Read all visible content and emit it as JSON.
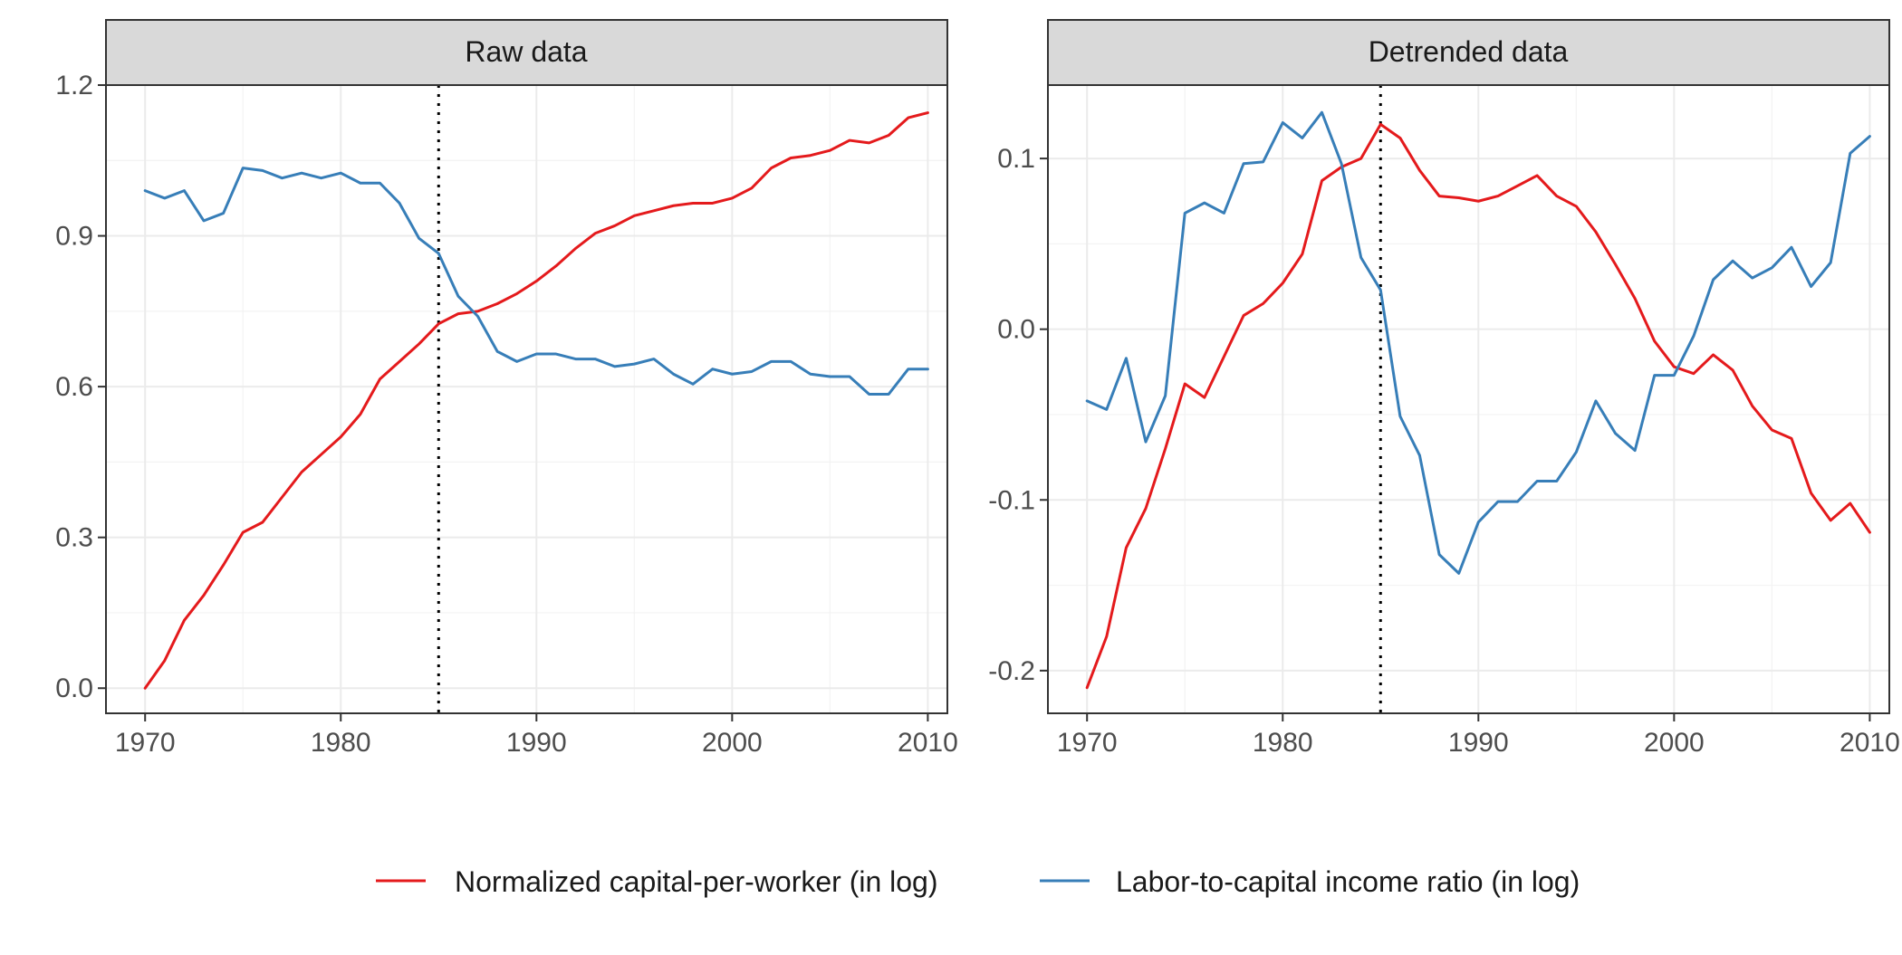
{
  "chart_data": [
    {
      "type": "line",
      "panel_title": "Raw data",
      "x_ticks": [
        1970,
        1980,
        1990,
        2000,
        2010
      ],
      "x_tick_labels": [
        "1970",
        "1980",
        "1990",
        "2000",
        "2010"
      ],
      "y_ticks": [
        0.0,
        0.3,
        0.6,
        0.9,
        1.2
      ],
      "y_tick_labels": [
        "0.0",
        "0.3",
        "0.6",
        "0.9",
        "1.2"
      ],
      "xlim": [
        1968,
        2011
      ],
      "ylim": [
        -0.05,
        1.2
      ],
      "reference_line_x": 1985,
      "grid": true,
      "x": [
        1970,
        1971,
        1972,
        1973,
        1974,
        1975,
        1976,
        1977,
        1978,
        1979,
        1980,
        1981,
        1982,
        1983,
        1984,
        1985,
        1986,
        1987,
        1988,
        1989,
        1990,
        1991,
        1992,
        1993,
        1994,
        1995,
        1996,
        1997,
        1998,
        1999,
        2000,
        2001,
        2002,
        2003,
        2004,
        2005,
        2006,
        2007,
        2008,
        2009,
        2010
      ],
      "series": [
        {
          "name": "Normalized capital-per-worker (in log)",
          "color": "#e41a1c",
          "values": [
            0.0,
            0.055,
            0.135,
            0.185,
            0.245,
            0.31,
            0.33,
            0.38,
            0.43,
            0.465,
            0.5,
            0.545,
            0.615,
            0.65,
            0.685,
            0.725,
            0.745,
            0.75,
            0.765,
            0.785,
            0.81,
            0.84,
            0.875,
            0.905,
            0.92,
            0.94,
            0.95,
            0.96,
            0.965,
            0.965,
            0.975,
            0.995,
            1.035,
            1.055,
            1.06,
            1.07,
            1.09,
            1.085,
            1.1,
            1.135,
            1.145
          ]
        },
        {
          "name": "Labor-to-capital income ratio (in log)",
          "color": "#377eb8",
          "values": [
            0.99,
            0.975,
            0.99,
            0.93,
            0.945,
            1.035,
            1.03,
            1.015,
            1.025,
            1.015,
            1.025,
            1.005,
            1.005,
            0.965,
            0.895,
            0.865,
            0.78,
            0.74,
            0.67,
            0.65,
            0.665,
            0.665,
            0.655,
            0.655,
            0.64,
            0.645,
            0.655,
            0.625,
            0.605,
            0.635,
            0.625,
            0.63,
            0.65,
            0.65,
            0.625,
            0.62,
            0.62,
            0.585,
            0.585,
            0.635,
            0.635
          ]
        }
      ]
    },
    {
      "type": "line",
      "panel_title": "Detrended data",
      "x_ticks": [
        1970,
        1980,
        1990,
        2000,
        2010
      ],
      "x_tick_labels": [
        "1970",
        "1980",
        "1990",
        "2000",
        "2010"
      ],
      "y_ticks": [
        -0.2,
        -0.1,
        0.0,
        0.1
      ],
      "y_tick_labels": [
        "-0.2",
        "-0.1",
        "0.0",
        "0.1"
      ],
      "xlim": [
        1968,
        2011
      ],
      "ylim": [
        -0.225,
        0.143
      ],
      "reference_line_x": 1985,
      "grid": true,
      "x": [
        1970,
        1971,
        1972,
        1973,
        1974,
        1975,
        1976,
        1977,
        1978,
        1979,
        1980,
        1981,
        1982,
        1983,
        1984,
        1985,
        1986,
        1987,
        1988,
        1989,
        1990,
        1991,
        1992,
        1993,
        1994,
        1995,
        1996,
        1997,
        1998,
        1999,
        2000,
        2001,
        2002,
        2003,
        2004,
        2005,
        2006,
        2007,
        2008,
        2009,
        2010
      ],
      "series": [
        {
          "name": "Normalized capital-per-worker (in log)",
          "color": "#e41a1c",
          "values": [
            -0.21,
            -0.18,
            -0.128,
            -0.105,
            -0.07,
            -0.032,
            -0.04,
            -0.016,
            0.008,
            0.015,
            0.027,
            0.044,
            0.087,
            0.095,
            0.1,
            0.12,
            0.112,
            0.093,
            0.078,
            0.077,
            0.075,
            0.078,
            0.084,
            0.09,
            0.078,
            0.072,
            0.057,
            0.038,
            0.018,
            -0.007,
            -0.022,
            -0.026,
            -0.015,
            -0.024,
            -0.045,
            -0.059,
            -0.064,
            -0.096,
            -0.112,
            -0.102,
            -0.119
          ]
        },
        {
          "name": "Labor-to-capital income ratio (in log)",
          "color": "#377eb8",
          "values": [
            -0.042,
            -0.047,
            -0.017,
            -0.066,
            -0.039,
            0.068,
            0.074,
            0.068,
            0.097,
            0.098,
            0.121,
            0.112,
            0.127,
            0.097,
            0.042,
            0.023,
            -0.051,
            -0.074,
            -0.132,
            -0.143,
            -0.113,
            -0.101,
            -0.101,
            -0.089,
            -0.089,
            -0.072,
            -0.042,
            -0.061,
            -0.071,
            -0.027,
            -0.027,
            -0.004,
            0.029,
            0.04,
            0.03,
            0.036,
            0.048,
            0.025,
            0.039,
            0.103,
            0.113
          ]
        }
      ]
    }
  ],
  "legend": {
    "position": "bottom",
    "items": [
      {
        "label": "Normalized capital-per-worker (in log)",
        "color": "#e41a1c"
      },
      {
        "label": "Labor-to-capital income ratio (in log)",
        "color": "#377eb8"
      }
    ]
  }
}
